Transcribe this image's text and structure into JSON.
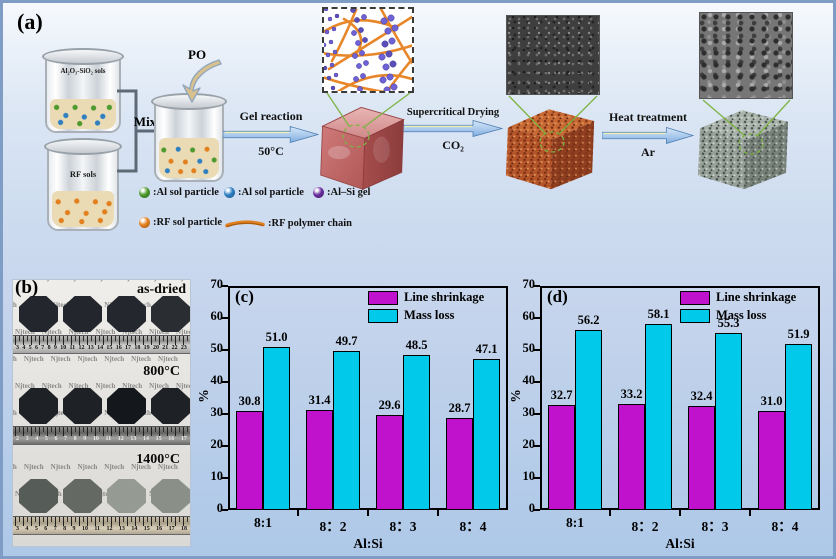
{
  "colors": {
    "figure_border": "#7f9cc4",
    "arrow_fill_top": "#d6e7f8",
    "arrow_fill_bottom": "#83afdf",
    "arrow_edge": "#4d7db2",
    "annotation_green": "#7cb342",
    "line_shrinkage": "#c011cc",
    "mass_loss": "#00c9e9"
  },
  "panel_a": {
    "label": "(a)",
    "beakers": [
      {
        "label": "Al₂O₃-SiO₂ sols"
      },
      {
        "label": "RF sols"
      }
    ],
    "mix_label": "Mix",
    "po_label": "PO",
    "steps": [
      {
        "title": "Gel reaction",
        "subtitle": "50°C"
      },
      {
        "title": "Supercritical Drying",
        "subtitle": "CO₂"
      },
      {
        "title": "Heat treatment",
        "subtitle": "Ar"
      }
    ],
    "legend": [
      {
        "icon": "green-sphere-icon",
        "color": "#4e9a2e",
        "dark": "#2f6b1a",
        "label": ":Al sol particle"
      },
      {
        "icon": "blue-sphere-icon",
        "color": "#2f7fc1",
        "dark": "#1b5a92",
        "label": ":Al sol particle"
      },
      {
        "icon": "purple-sphere-icon",
        "color": "#6a2d9e",
        "dark": "#471d6e",
        "label": ":Al–Si gel"
      },
      {
        "icon": "orange-sphere-icon",
        "color": "#e2801f",
        "dark": "#a85a10",
        "label": ":RF sol particle"
      },
      {
        "icon": "orange-chain-icon",
        "color": "#e2801f",
        "dark": "#a85a10",
        "label": ":RF polymer chain"
      }
    ]
  },
  "panel_b": {
    "label": "(b)",
    "watermark": "Njtech",
    "rows": [
      {
        "caption": "as-dried",
        "sample_colors": [
          "#23272d",
          "#23272d",
          "#24282e",
          "#2a2e33"
        ],
        "ruler_numbers": "3 4 5 6 7 8 9 10 11 12 13 14 15 16 17 18 19 20 21 22 23"
      },
      {
        "caption": "800°C",
        "sample_colors": [
          "#1e2227",
          "#1e2227",
          "#14181d",
          "#1e2227"
        ],
        "ruler_numbers": "2 3 4 5 6 7 8 9 10 11 12 13 14 15 16 17"
      },
      {
        "caption": "1400°C",
        "sample_colors": [
          "#565c57",
          "#646a63",
          "#959b93",
          "#8a9088"
        ],
        "ruler_numbers": "3 4 5 6 7 8 9 10 11 12 13 14 15 16 17 18"
      }
    ]
  },
  "chart_data": [
    {
      "type": "bar",
      "panel": "(c)",
      "categories": [
        "8:1",
        "8：2",
        "8：3",
        "8：4"
      ],
      "series": [
        {
          "name": "Line shrinkage",
          "color": "#c011cc",
          "values": [
            30.8,
            31.4,
            29.6,
            28.7
          ]
        },
        {
          "name": "Mass loss",
          "color": "#00c9e9",
          "values": [
            51.0,
            49.7,
            48.5,
            47.1
          ]
        }
      ],
      "xlabel": "Al:Si",
      "ylabel": "%",
      "ylim": [
        0,
        70
      ],
      "ytick_step": 10,
      "legend_position": "top-right",
      "grid": false
    },
    {
      "type": "bar",
      "panel": "(d)",
      "categories": [
        "8:1",
        "8：2",
        "8：3",
        "8：4"
      ],
      "series": [
        {
          "name": "Line shrinkage",
          "color": "#c011cc",
          "values": [
            32.7,
            33.2,
            32.4,
            31.0
          ]
        },
        {
          "name": "Mass loss",
          "color": "#00c9e9",
          "values": [
            56.2,
            58.1,
            55.3,
            51.9
          ]
        }
      ],
      "xlabel": "Al:Si",
      "ylabel": "%",
      "ylim": [
        0,
        70
      ],
      "ytick_step": 10,
      "legend_position": "top-right",
      "grid": false
    }
  ]
}
